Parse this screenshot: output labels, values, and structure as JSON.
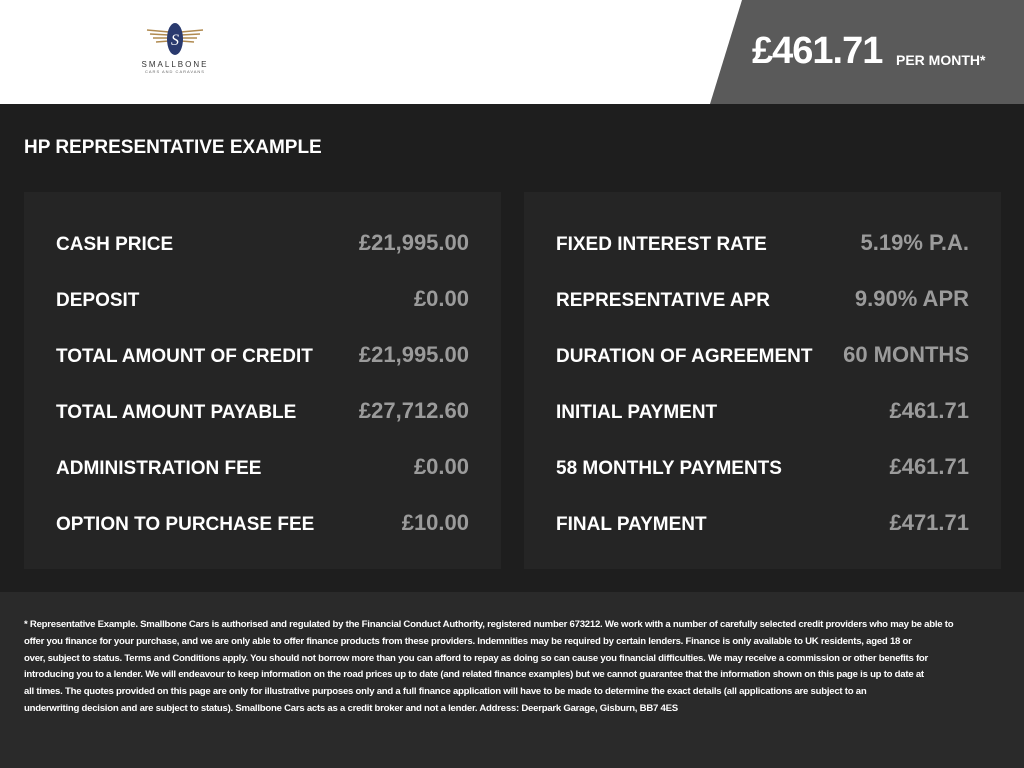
{
  "header": {
    "logo_text": "SMALLBONE",
    "logo_subtext": "CARS AND CARAVANS",
    "monthly_price": "£461.71",
    "per_month_label": "PER MONTH*"
  },
  "section_title": "HP REPRESENTATIVE EXAMPLE",
  "left_panel": [
    {
      "label": "CASH PRICE",
      "value": "£21,995.00"
    },
    {
      "label": "DEPOSIT",
      "value": "£0.00"
    },
    {
      "label": "TOTAL AMOUNT OF CREDIT",
      "value": "£21,995.00"
    },
    {
      "label": "TOTAL AMOUNT PAYABLE",
      "value": "£27,712.60"
    },
    {
      "label": "ADMINISTRATION FEE",
      "value": "£0.00"
    },
    {
      "label": "OPTION TO PURCHASE FEE",
      "value": "£10.00"
    }
  ],
  "right_panel": [
    {
      "label": "FIXED INTEREST RATE",
      "value": "5.19% P.A."
    },
    {
      "label": "REPRESENTATIVE APR",
      "value": "9.90% APR"
    },
    {
      "label": "DURATION OF AGREEMENT",
      "value": "60 MONTHS"
    },
    {
      "label": "INITIAL PAYMENT",
      "value": "£461.71"
    },
    {
      "label": "58 MONTHLY PAYMENTS",
      "value": "£461.71"
    },
    {
      "label": "FINAL PAYMENT",
      "value": "£471.71"
    }
  ],
  "disclaimer_lines": [
    "* Representative Example. Smallbone Cars is authorised and regulated by the Financial Conduct Authority, registered number 673212. We work with a number of carefully selected credit providers who may be able to",
    "offer you finance for your purchase, and we are only able to offer finance products from these providers. Indemnities may be required by certain lenders. Finance is only available to UK residents, aged 18 or",
    "over, subject to status. Terms and Conditions apply. You should not borrow more than you can afford to repay as doing so can cause you financial difficulties. We may receive a commission or other benefits for",
    "introducing you to a lender. We will endeavour to keep information on the road prices up to date (and related finance examples) but we cannot guarantee that the information shown on this page is up to date at",
    "all times. The quotes provided on this page are only for illustrative purposes only and a full finance application will have to be made to determine the exact details (all applications are subject to an",
    "underwriting decision and are subject to status). Smallbone Cars acts as a credit broker and not a lender. Address: Deerpark Garage, Gisburn, BB7 4ES"
  ],
  "colors": {
    "banner": "#5a5a5a",
    "background": "#1e1e1e",
    "panel": "#252525",
    "value_text": "#9b9b9b"
  }
}
